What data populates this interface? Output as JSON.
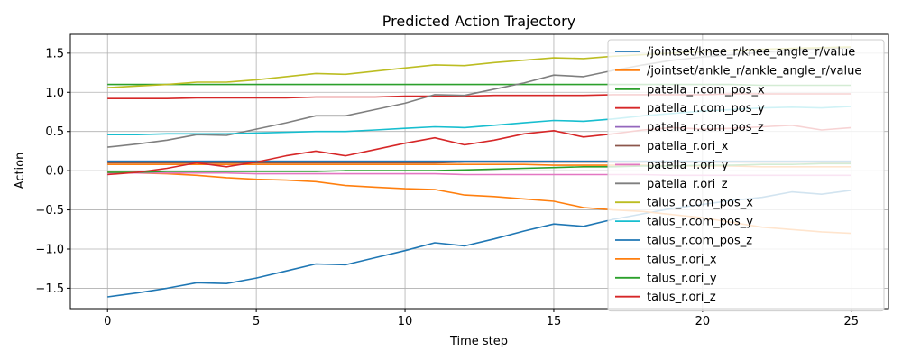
{
  "chart_data": {
    "type": "line",
    "title": "Predicted Action Trajectory",
    "xlabel": "Time step",
    "ylabel": "Action",
    "xlim": [
      -1.25,
      26.25
    ],
    "ylim": [
      -1.76,
      1.74
    ],
    "xticks": [
      0,
      5,
      10,
      15,
      20,
      25
    ],
    "yticks": [
      -1.5,
      -1.0,
      -0.5,
      0.0,
      0.5,
      1.0,
      1.5
    ],
    "grid": true,
    "legend_position": "top-right",
    "x": [
      0,
      1,
      2,
      3,
      4,
      5,
      6,
      7,
      8,
      9,
      10,
      11,
      12,
      13,
      14,
      15,
      16,
      17,
      18,
      19,
      20,
      21,
      22,
      23,
      24,
      25
    ],
    "series": [
      {
        "name": "/jointset/knee_r/knee_angle_r/value",
        "color": "#1f77b4",
        "values": [
          -1.61,
          -1.56,
          -1.5,
          -1.43,
          -1.44,
          -1.37,
          -1.28,
          -1.19,
          -1.2,
          -1.11,
          -1.02,
          -0.92,
          -0.96,
          -0.87,
          -0.77,
          -0.68,
          -0.71,
          -0.62,
          -0.55,
          -0.48,
          -0.43,
          -0.38,
          -0.34,
          -0.27,
          -0.3,
          -0.25
        ]
      },
      {
        "name": "/jointset/ankle_r/ankle_angle_r/value",
        "color": "#ff7f0e",
        "values": [
          -0.02,
          -0.03,
          -0.04,
          -0.06,
          -0.09,
          -0.11,
          -0.12,
          -0.14,
          -0.19,
          -0.21,
          -0.23,
          -0.24,
          -0.31,
          -0.33,
          -0.36,
          -0.39,
          -0.47,
          -0.5,
          -0.52,
          -0.56,
          -0.6,
          -0.66,
          -0.72,
          -0.75,
          -0.78,
          -0.8
        ]
      },
      {
        "name": "patella_r.com_pos_x",
        "color": "#2ca02c",
        "values": [
          1.1,
          1.1,
          1.1,
          1.1,
          1.1,
          1.1,
          1.1,
          1.1,
          1.1,
          1.1,
          1.1,
          1.1,
          1.1,
          1.1,
          1.1,
          1.1,
          1.1,
          1.1,
          1.1,
          1.1,
          1.1,
          1.1,
          1.09,
          1.09,
          1.09,
          1.09
        ]
      },
      {
        "name": "patella_r.com_pos_y",
        "color": "#d62728",
        "values": [
          0.92,
          0.92,
          0.92,
          0.93,
          0.93,
          0.93,
          0.93,
          0.94,
          0.94,
          0.94,
          0.95,
          0.95,
          0.95,
          0.96,
          0.96,
          0.96,
          0.96,
          0.97,
          0.97,
          0.97,
          0.97,
          0.98,
          0.98,
          0.98,
          0.98,
          0.98
        ]
      },
      {
        "name": "patella_r.com_pos_z",
        "color": "#9467bd",
        "values": [
          0.12,
          0.12,
          0.12,
          0.12,
          0.12,
          0.12,
          0.12,
          0.12,
          0.12,
          0.12,
          0.12,
          0.12,
          0.12,
          0.12,
          0.12,
          0.12,
          0.12,
          0.12,
          0.12,
          0.12,
          0.12,
          0.12,
          0.12,
          0.12,
          0.12,
          0.12
        ]
      },
      {
        "name": "patella_r.ori_x",
        "color": "#8c564b",
        "values": [
          0.1,
          0.1,
          0.1,
          0.1,
          0.1,
          0.1,
          0.1,
          0.1,
          0.1,
          0.1,
          0.1,
          0.1,
          0.11,
          0.11,
          0.11,
          0.11,
          0.11,
          0.11,
          0.11,
          0.11,
          0.11,
          0.11,
          0.11,
          0.11,
          0.11,
          0.11
        ]
      },
      {
        "name": "patella_r.ori_y",
        "color": "#e377c2",
        "values": [
          -0.03,
          -0.03,
          -0.03,
          -0.03,
          -0.03,
          -0.04,
          -0.04,
          -0.04,
          -0.04,
          -0.04,
          -0.04,
          -0.04,
          -0.05,
          -0.05,
          -0.05,
          -0.05,
          -0.05,
          -0.05,
          -0.05,
          -0.06,
          -0.06,
          -0.06,
          -0.06,
          -0.06,
          -0.06,
          -0.06
        ]
      },
      {
        "name": "patella_r.ori_z",
        "color": "#7f7f7f",
        "values": [
          0.3,
          0.34,
          0.39,
          0.46,
          0.45,
          0.53,
          0.61,
          0.7,
          0.7,
          0.78,
          0.86,
          0.97,
          0.96,
          1.04,
          1.12,
          1.22,
          1.2,
          1.28,
          1.35,
          1.41,
          1.45,
          1.48,
          1.51,
          1.54,
          1.56,
          1.57
        ]
      },
      {
        "name": "talus_r.com_pos_x",
        "color": "#bcbd22",
        "values": [
          1.06,
          1.08,
          1.1,
          1.13,
          1.13,
          1.16,
          1.2,
          1.24,
          1.23,
          1.27,
          1.31,
          1.35,
          1.34,
          1.38,
          1.41,
          1.44,
          1.43,
          1.46,
          1.48,
          1.5,
          1.52,
          1.53,
          1.55,
          1.56,
          1.57,
          1.58
        ]
      },
      {
        "name": "talus_r.com_pos_y",
        "color": "#17becf",
        "values": [
          0.46,
          0.46,
          0.47,
          0.47,
          0.47,
          0.48,
          0.49,
          0.5,
          0.5,
          0.52,
          0.54,
          0.56,
          0.55,
          0.58,
          0.61,
          0.64,
          0.63,
          0.66,
          0.7,
          0.73,
          0.76,
          0.78,
          0.8,
          0.81,
          0.8,
          0.82
        ]
      },
      {
        "name": "talus_r.com_pos_z",
        "color": "#1f77b4",
        "values": [
          0.12,
          0.12,
          0.12,
          0.12,
          0.12,
          0.12,
          0.12,
          0.12,
          0.12,
          0.12,
          0.12,
          0.12,
          0.12,
          0.12,
          0.12,
          0.12,
          0.12,
          0.12,
          0.12,
          0.12,
          0.12,
          0.12,
          0.12,
          0.12,
          0.12,
          0.12
        ]
      },
      {
        "name": "talus_r.ori_x",
        "color": "#ff7f0e",
        "values": [
          0.08,
          0.08,
          0.08,
          0.08,
          0.08,
          0.08,
          0.08,
          0.08,
          0.08,
          0.08,
          0.08,
          0.08,
          0.08,
          0.08,
          0.08,
          0.07,
          0.07,
          0.07,
          0.07,
          0.06,
          0.06,
          0.06,
          0.05,
          0.05,
          0.05,
          0.05
        ]
      },
      {
        "name": "talus_r.ori_y",
        "color": "#2ca02c",
        "values": [
          -0.02,
          -0.02,
          -0.01,
          -0.01,
          -0.01,
          -0.01,
          -0.01,
          -0.01,
          0.0,
          0.0,
          0.0,
          0.0,
          0.01,
          0.02,
          0.03,
          0.04,
          0.05,
          0.05,
          0.06,
          0.06,
          0.07,
          0.07,
          0.08,
          0.08,
          0.09,
          0.09
        ]
      },
      {
        "name": "talus_r.ori_z",
        "color": "#d62728",
        "values": [
          -0.05,
          -0.02,
          0.03,
          0.1,
          0.05,
          0.11,
          0.19,
          0.25,
          0.19,
          0.27,
          0.35,
          0.42,
          0.33,
          0.39,
          0.47,
          0.51,
          0.43,
          0.47,
          0.52,
          0.55,
          0.53,
          0.54,
          0.56,
          0.58,
          0.52,
          0.55
        ]
      }
    ]
  }
}
